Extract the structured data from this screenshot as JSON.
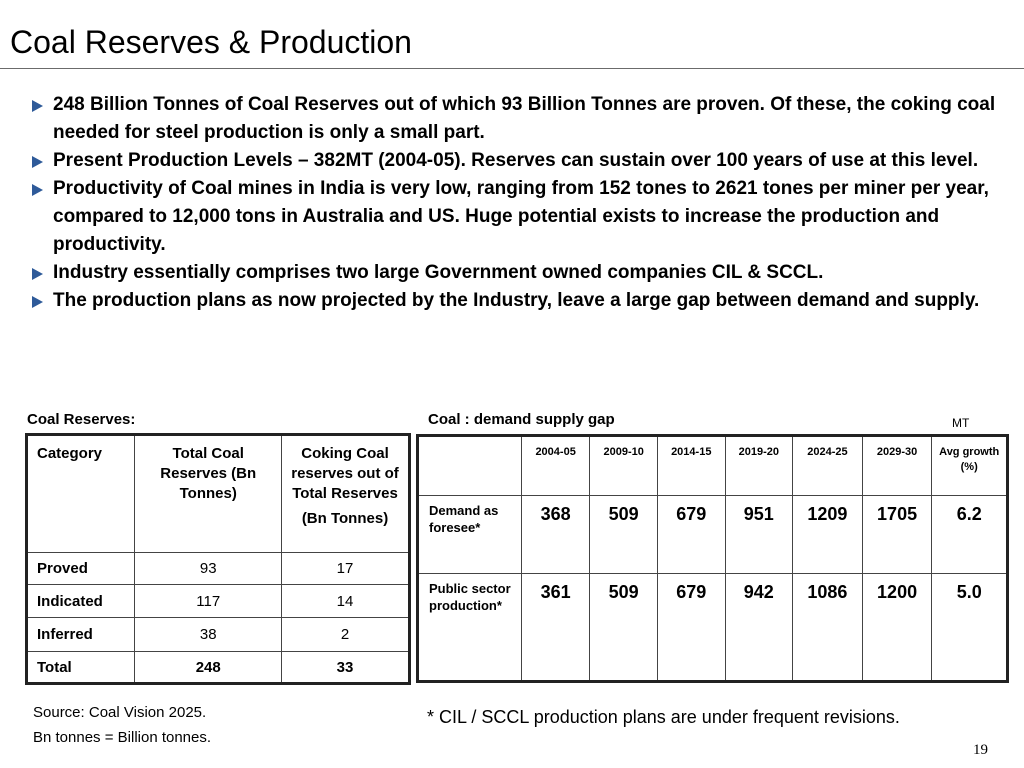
{
  "title": "Coal Reserves & Production",
  "bullets": [
    "248 Billion Tonnes of Coal Reserves out of which 93 Billion Tonnes are proven. Of these, the coking coal needed for steel production is only a small part.",
    "Present Production Levels – 382MT (2004-05).  Reserves can sustain over 100 years of use at this level.",
    "Productivity of Coal mines in India is very low, ranging from 152 tones to 2621 tones per miner per year, compared to 12,000 tons in Australia and US. Huge potential exists to increase the production and productivity.",
    "Industry essentially comprises two large Government owned companies CIL & SCCL.",
    "The production plans as now projected by the Industry, leave a large gap between demand and supply."
  ],
  "reserves": {
    "caption": "Coal Reserves:",
    "headers": {
      "category": "Category",
      "total": "Total Coal Reserves (Bn Tonnes)",
      "coking": "Coking Coal reserves out of Total Reserves",
      "coking_unit": "(Bn Tonnes)"
    },
    "rows": [
      {
        "label": "Proved",
        "total": "93",
        "coking": "17"
      },
      {
        "label": "Indicated",
        "total": "117",
        "coking": "14"
      },
      {
        "label": "Inferred",
        "total": "38",
        "coking": "2"
      },
      {
        "label": "Total",
        "total": "248",
        "coking": "33"
      }
    ]
  },
  "gap": {
    "caption": "Coal : demand supply gap",
    "unit": "MT",
    "columns": [
      "2004-05",
      "2009-10",
      "2014-15",
      "2019-20",
      "2024-25",
      "2029-30",
      "Avg growth (%)"
    ],
    "rows": [
      {
        "label": "Demand as foresee*",
        "values": [
          "368",
          "509",
          "679",
          "951",
          "1209",
          "1705",
          "6.2"
        ]
      },
      {
        "label": "Public sector production*",
        "values": [
          "361",
          "509",
          "679",
          "942",
          "1086",
          "1200",
          "5.0"
        ]
      }
    ]
  },
  "footer": {
    "source": "Source: Coal Vision 2025.",
    "definition": "Bn tonnes = Billion tonnes.",
    "note": "* CIL / SCCL production plans are under frequent revisions.",
    "page_number": "19"
  }
}
